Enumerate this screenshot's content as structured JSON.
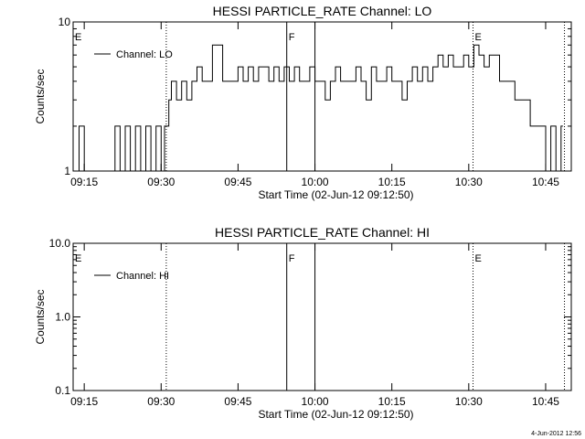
{
  "chart_data": [
    {
      "type": "line",
      "title": "HESSI PARTICLE_RATE Channel: LO",
      "xlabel": "Start Time (02-Jun-12 09:12:50)",
      "ylabel": "Counts/sec",
      "y_scale": "log",
      "ylim": [
        1,
        10
      ],
      "y_ticks": [
        {
          "value": 1,
          "label": "1"
        },
        {
          "value": 10,
          "label": "10"
        }
      ],
      "xlim": [
        "09:12:50",
        "10:50:00"
      ],
      "x_ticks": [
        "09:15",
        "09:30",
        "09:45",
        "10:00",
        "10:15",
        "10:30",
        "10:45"
      ],
      "grid": false,
      "legend": {
        "position": "top-left",
        "entries": [
          "Channel: LO"
        ]
      },
      "markers": [
        {
          "time": "09:12:50",
          "label": "E",
          "style": "dotted"
        },
        {
          "time": "09:31:00",
          "label": "",
          "style": "dotted"
        },
        {
          "time": "09:54:30",
          "label": "F",
          "style": "solid"
        },
        {
          "time": "10:00:00",
          "label": "",
          "style": "solid"
        },
        {
          "time": "10:30:50",
          "label": "E",
          "style": "dotted"
        },
        {
          "time": "10:48:40",
          "label": "",
          "style": "dotted"
        }
      ],
      "series": [
        {
          "name": "Channel: LO",
          "step": true,
          "x": [
            "09:13:30",
            "09:14:00",
            "09:15:00",
            "09:16:00",
            "09:17:00",
            "09:18:00",
            "09:19:00",
            "09:20:00",
            "09:21:00",
            "09:22:00",
            "09:23:00",
            "09:24:00",
            "09:25:00",
            "09:26:00",
            "09:27:00",
            "09:28:00",
            "09:29:00",
            "09:30:00",
            "09:30:40",
            "09:31:30",
            "09:32:00",
            "09:33:00",
            "09:34:00",
            "09:35:00",
            "09:36:00",
            "09:37:00",
            "09:38:00",
            "09:40:00",
            "09:42:00",
            "09:43:00",
            "09:44:00",
            "09:45:00",
            "09:46:00",
            "09:47:00",
            "09:48:00",
            "09:49:00",
            "09:50:00",
            "09:51:00",
            "09:52:00",
            "09:53:00",
            "09:54:00",
            "09:55:00",
            "09:56:00",
            "09:57:00",
            "09:58:00",
            "09:59:00",
            "10:00:00",
            "10:01:00",
            "10:02:00",
            "10:03:00",
            "10:04:00",
            "10:05:00",
            "10:06:00",
            "10:07:00",
            "10:08:00",
            "10:09:00",
            "10:10:00",
            "10:11:00",
            "10:12:00",
            "10:13:00",
            "10:14:00",
            "10:15:00",
            "10:16:00",
            "10:17:00",
            "10:18:00",
            "10:19:00",
            "10:20:00",
            "10:21:00",
            "10:22:00",
            "10:23:00",
            "10:24:00",
            "10:25:00",
            "10:26:00",
            "10:27:00",
            "10:28:00",
            "10:29:00",
            "10:30:00",
            "10:31:00",
            "10:32:00",
            "10:33:00",
            "10:34:00",
            "10:35:00",
            "10:36:00",
            "10:37:00",
            "10:38:00",
            "10:39:00",
            "10:40:00",
            "10:41:00",
            "10:42:00",
            "10:43:00",
            "10:44:00",
            "10:45:00",
            "10:46:00",
            "10:47:00",
            "10:48:00"
          ],
          "y": [
            1,
            2,
            1,
            1,
            1,
            1,
            1,
            1,
            2,
            1,
            2,
            1,
            2,
            1,
            2,
            1,
            2,
            1,
            2,
            3,
            4,
            3,
            4,
            3,
            4,
            5,
            4,
            7,
            4,
            4,
            4,
            5,
            4,
            5,
            4,
            5,
            5,
            4,
            5,
            4,
            5,
            4,
            5,
            4,
            4,
            5,
            4,
            4,
            3,
            4,
            5,
            4,
            4,
            4,
            5,
            4,
            3,
            5,
            4,
            4,
            5,
            4,
            4,
            3,
            4,
            5,
            4,
            5,
            4,
            5,
            6,
            5,
            6,
            5,
            5,
            6,
            5,
            7,
            6,
            5,
            6,
            6,
            4,
            4,
            4,
            3,
            3,
            3,
            2,
            2,
            2,
            1,
            2,
            1,
            2
          ]
        }
      ]
    },
    {
      "type": "line",
      "title": "HESSI PARTICLE_RATE Channel: HI",
      "xlabel": "Start Time (02-Jun-12 09:12:50)",
      "ylabel": "Counts/sec",
      "y_scale": "log",
      "ylim": [
        0.1,
        10
      ],
      "y_ticks": [
        {
          "value": 0.1,
          "label": "0.1"
        },
        {
          "value": 1,
          "label": "1.0"
        },
        {
          "value": 10,
          "label": "10.0"
        }
      ],
      "xlim": [
        "09:12:50",
        "10:50:00"
      ],
      "x_ticks": [
        "09:15",
        "09:30",
        "09:45",
        "10:00",
        "10:15",
        "10:30",
        "10:45"
      ],
      "grid": false,
      "legend": {
        "position": "top-left",
        "entries": [
          "Channel: HI"
        ]
      },
      "markers": [
        {
          "time": "09:12:50",
          "label": "E",
          "style": "dotted"
        },
        {
          "time": "09:31:00",
          "label": "",
          "style": "dotted"
        },
        {
          "time": "09:54:30",
          "label": "F",
          "style": "solid"
        },
        {
          "time": "10:00:00",
          "label": "",
          "style": "solid"
        },
        {
          "time": "10:30:50",
          "label": "E",
          "style": "dotted"
        },
        {
          "time": "10:48:40",
          "label": "",
          "style": "dotted"
        }
      ],
      "series": [
        {
          "name": "Channel: HI",
          "x": [],
          "y": []
        }
      ]
    }
  ],
  "footer": {
    "timestamp": "4-Jun-2012 12:56"
  }
}
